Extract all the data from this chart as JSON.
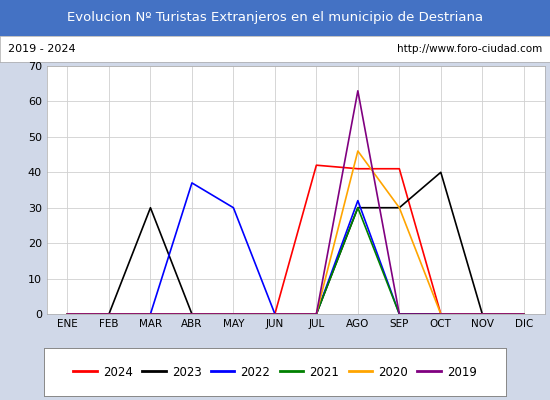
{
  "title": "Evolucion Nº Turistas Extranjeros en el municipio de Destriana",
  "subtitle_left": "2019 - 2024",
  "subtitle_right": "http://www.foro-ciudad.com",
  "title_bg": "#4472c4",
  "title_color": "white",
  "months": [
    "ENE",
    "FEB",
    "MAR",
    "ABR",
    "MAY",
    "JUN",
    "JUL",
    "AGO",
    "SEP",
    "OCT",
    "NOV",
    "DIC"
  ],
  "ylim": [
    0,
    70
  ],
  "yticks": [
    0,
    10,
    20,
    30,
    40,
    50,
    60,
    70
  ],
  "series": {
    "2024": {
      "color": "red",
      "data": [
        0,
        0,
        0,
        0,
        0,
        0,
        42,
        41,
        41,
        0,
        0,
        0
      ]
    },
    "2023": {
      "color": "black",
      "data": [
        0,
        0,
        30,
        0,
        0,
        0,
        0,
        30,
        30,
        40,
        0,
        0
      ]
    },
    "2022": {
      "color": "blue",
      "data": [
        0,
        0,
        0,
        37,
        30,
        0,
        0,
        32,
        0,
        0,
        0,
        0
      ]
    },
    "2021": {
      "color": "green",
      "data": [
        0,
        0,
        0,
        0,
        0,
        0,
        0,
        30,
        0,
        0,
        0,
        0
      ]
    },
    "2020": {
      "color": "orange",
      "data": [
        0,
        0,
        0,
        0,
        0,
        0,
        0,
        46,
        30,
        0,
        0,
        0
      ]
    },
    "2019": {
      "color": "purple",
      "data": [
        0,
        0,
        0,
        0,
        0,
        0,
        0,
        63,
        0,
        0,
        0,
        0
      ]
    }
  },
  "legend_order": [
    "2024",
    "2023",
    "2022",
    "2021",
    "2020",
    "2019"
  ],
  "fig_bg": "#d0d8e8"
}
